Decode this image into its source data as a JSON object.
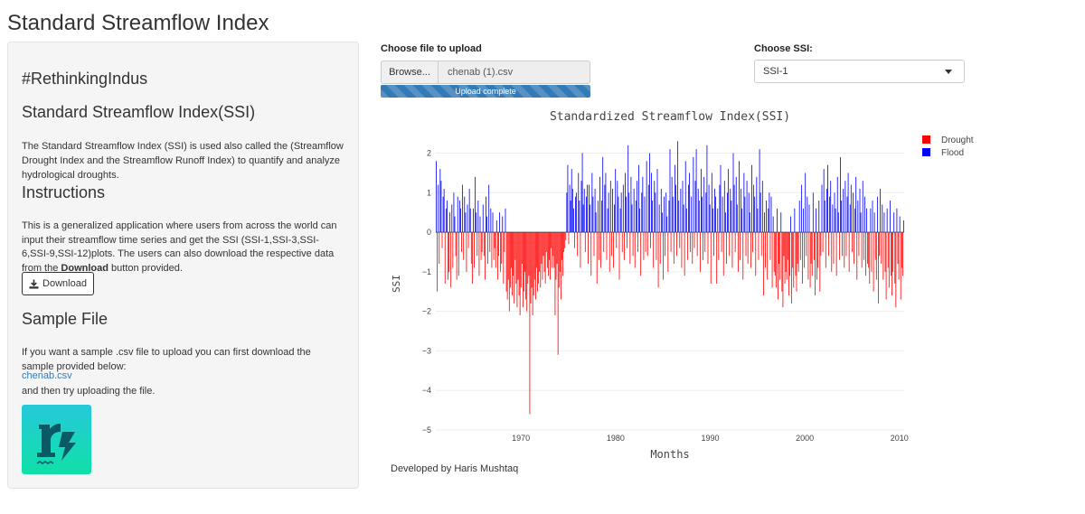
{
  "app": {
    "title": "Standard Streamflow Index"
  },
  "sidebar": {
    "brand": "#RethinkingIndus",
    "ssi_heading": "Standard Streamflow Index(SSI)",
    "ssi_description": "The Standard Streamflow Index (SSI) is used also called the (Streamflow Drought Index and the Streamflow Runoff Index) to quantify and analyze hydrological droughts.",
    "instructions_heading": "Instructions",
    "instructions_text_before": "This is a generalized application where users from across the world can input their streamflow time series and get the SSI (SSI-1,SSI-3,SSI-6,SSI-9,SSI-12)plots. The users can also download the respective data from the ",
    "instructions_bold": "Download",
    "instructions_text_after": " button provided.",
    "download_label": "Download",
    "sample_heading": "Sample File",
    "sample_text": "If you want a sample .csv file to upload you can first download the sample provided below:",
    "sample_link": "chenab.csv",
    "sample_after": "and then try uploading the file."
  },
  "upload": {
    "label": "Choose file to upload",
    "browse_label": "Browse...",
    "file_name": "chenab (1).csv",
    "progress_text": "Upload complete",
    "progress_fraction": 1.0
  },
  "ssi_select": {
    "label": "Choose SSI:",
    "value": "SSI-1"
  },
  "chart_data": {
    "type": "bar",
    "title": "Standardized Streamflow Index(SSI)",
    "xlabel": "Months",
    "ylabel": "SSI",
    "x_range": [
      1961,
      2010.5
    ],
    "ylim": [
      -5,
      2.4
    ],
    "x_ticks": [
      1970,
      1980,
      1990,
      2000,
      2010
    ],
    "y_ticks": [
      -5,
      -4,
      -3,
      -2,
      -1,
      0,
      1,
      2
    ],
    "grid": true,
    "legend_position": "top-right",
    "series": [
      {
        "name": "Drought",
        "color": "#ff0000"
      },
      {
        "name": "Flood",
        "color": "#0000ff"
      }
    ],
    "monthly_values_approx": [
      1.8,
      -1.5,
      1.2,
      -0.8,
      1.6,
      1.3,
      -0.4,
      0.9,
      1.1,
      -1.3,
      0.6,
      0.8,
      -1.2,
      -1.0,
      0.5,
      -1.4,
      0.7,
      -0.9,
      1.0,
      0.4,
      -0.6,
      -1.2,
      0.9,
      -1.1,
      0.8,
      0.6,
      -0.5,
      1.2,
      -0.7,
      0.9,
      0.5,
      -1.0,
      0.7,
      -0.4,
      1.1,
      0.6,
      -0.8,
      -1.3,
      0.6,
      -0.9,
      1.4,
      0.5,
      -0.6,
      0.8,
      -1.1,
      0.4,
      -0.7,
      -0.5,
      0.7,
      -0.6,
      -1.2,
      0.9,
      0.4,
      -0.8,
      1.2,
      -0.5,
      0.6,
      -0.9,
      0.5,
      -0.7,
      -0.4,
      -0.9,
      0.3,
      -1.2,
      -0.6,
      0.5,
      -1.0,
      -0.8,
      0.4,
      -1.3,
      -0.5,
      0.6,
      -1.5,
      -1.7,
      -1.2,
      -2.0,
      -1.4,
      -0.9,
      -1.6,
      -1.1,
      -1.8,
      -0.7,
      -1.3,
      -1.9,
      -1.2,
      -1.6,
      -2.1,
      -1.4,
      -0.8,
      -1.9,
      -1.5,
      -1.0,
      -1.7,
      -2.0,
      -1.3,
      -1.1,
      -4.6,
      -1.8,
      -1.4,
      -2.1,
      -1.6,
      -1.2,
      -1.7,
      -0.9,
      -1.5,
      -1.3,
      -1.0,
      -1.4,
      -0.8,
      -1.2,
      -0.6,
      -1.0,
      -1.3,
      -0.5,
      -0.9,
      -1.1,
      -0.7,
      -1.2,
      -0.4,
      -0.9,
      -0.6,
      -0.9,
      -2.1,
      -1.2,
      -0.8,
      -3.1,
      -1.4,
      -1.0,
      -1.7,
      -0.7,
      -1.1,
      -0.5,
      -0.4,
      -0.2,
      1.0,
      1.7,
      -0.3,
      1.2,
      0.8,
      1.6,
      1.1,
      0.6,
      -0.4,
      0.9,
      1.0,
      -0.6,
      1.5,
      0.8,
      -0.9,
      1.3,
      2.0,
      0.7,
      1.1,
      -0.5,
      0.9,
      1.2,
      -0.8,
      1.2,
      0.7,
      -1.1,
      1.5,
      0.9,
      -0.6,
      1.1,
      0.5,
      -1.3,
      0.8,
      -0.7,
      1.4,
      -0.9,
      0.8,
      1.9,
      -0.5,
      1.2,
      1.5,
      -0.7,
      0.6,
      1.0,
      -1.0,
      1.3,
      -0.6,
      1.1,
      -0.9,
      0.7,
      1.6,
      -0.4,
      1.3,
      0.9,
      -1.2,
      0.6,
      1.0,
      -0.5,
      1.2,
      -0.7,
      1.5,
      0.9,
      -0.4,
      2.2,
      1.0,
      -0.8,
      1.4,
      0.7,
      -0.6,
      1.1,
      -0.9,
      0.8,
      1.3,
      -0.5,
      1.7,
      0.6,
      -1.1,
      1.0,
      1.4,
      -0.7,
      0.9,
      -0.5,
      1.8,
      -0.6,
      1.2,
      2.0,
      -0.4,
      1.5,
      0.8,
      -0.9,
      1.3,
      1.0,
      -0.7,
      1.6,
      -1.4,
      0.7,
      -0.8,
      1.1,
      0.5,
      -1.2,
      0.9,
      -0.6,
      1.0,
      0.4,
      -1.0,
      0.8,
      2.1,
      -0.5,
      1.4,
      0.9,
      -0.8,
      1.7,
      1.2,
      -0.6,
      2.3,
      0.8,
      -0.4,
      1.1,
      -0.9,
      1.3,
      0.7,
      -1.1,
      1.8,
      0.6,
      -0.7,
      1.2,
      1.5,
      -0.5,
      0.9,
      -0.8,
      1.9,
      -0.4,
      1.3,
      2.1,
      -0.6,
      1.1,
      0.8,
      -1.0,
      1.6,
      0.9,
      -0.7,
      1.4,
      -0.5,
      1.0,
      2.2,
      -0.8,
      1.2,
      0.7,
      -1.3,
      1.5,
      0.6,
      -0.6,
      1.1,
      0.9,
      -1.3,
      0.6,
      -0.7,
      1.2,
      1.7,
      -0.5,
      0.9,
      -1.1,
      1.3,
      0.5,
      -0.8,
      1.0,
      1.6,
      -0.6,
      1.1,
      0.8,
      -0.9,
      2.0,
      1.2,
      -0.5,
      1.4,
      0.7,
      -1.0,
      1.8,
      -0.7,
      1.1,
      0.6,
      -1.2,
      1.5,
      0.9,
      -0.6,
      1.3,
      -0.8,
      1.0,
      0.5,
      -0.9,
      1.7,
      -0.5,
      1.2,
      0.9,
      -1.1,
      1.4,
      0.6,
      -0.7,
      2.1,
      1.0,
      -0.6,
      1.3,
      -1.6,
      0.5,
      -0.9,
      0.8,
      -1.2,
      0.6,
      1.0,
      -0.7,
      0.9,
      -1.4,
      0.4,
      -1.0,
      -1.1,
      -1.4,
      0.6,
      -1.7,
      -0.8,
      -1.2,
      0.5,
      -1.5,
      -1.9,
      -0.6,
      -1.3,
      -1.0,
      -1.2,
      -0.7,
      -1.6,
      -1.1,
      0.4,
      -1.8,
      -0.9,
      -1.4,
      0.6,
      -1.1,
      -1.5,
      -0.8,
      -1.0,
      0.8,
      -0.7,
      1.2,
      -1.3,
      0.6,
      -0.9,
      1.5,
      -0.6,
      0.9,
      -1.2,
      0.7,
      -1.4,
      -0.8,
      -1.1,
      1.0,
      -0.7,
      -1.6,
      0.6,
      -1.2,
      -0.9,
      0.8,
      -1.5,
      -0.6,
      1.2,
      -0.5,
      1.6,
      0.8,
      -0.9,
      1.1,
      1.7,
      -0.6,
      0.9,
      1.3,
      -1.0,
      0.7,
      -0.8,
      1.0,
      0.6,
      -1.1,
      1.4,
      0.5,
      -0.7,
      1.9,
      0.8,
      -0.6,
      1.1,
      -0.9,
      1.3,
      -0.6,
      0.9,
      1.5,
      -1.0,
      0.7,
      1.2,
      -0.5,
      1.0,
      -0.8,
      0.6,
      1.4,
      -1.2,
      0.8,
      -0.6,
      1.1,
      0.5,
      -0.9,
      1.3,
      -0.7,
      0.9,
      -1.1,
      0.6,
      -0.8,
      -0.9,
      -1.3,
      0.6,
      -1.0,
      0.8,
      -1.5,
      0.5,
      -0.7,
      -1.2,
      0.9,
      -1.8,
      -0.6,
      1.1,
      -0.8,
      0.7,
      -1.2,
      0.5,
      -1.0,
      -1.7,
      0.6,
      -0.9,
      -1.4,
      0.8,
      -1.1,
      -1.6,
      -1.0,
      0.5,
      -1.3,
      -1.9,
      0.6,
      -0.8,
      -1.2,
      0.4,
      -1.7,
      -0.9,
      -1.1,
      0.3
    ]
  },
  "footer": {
    "text": "Developed by Haris Mushtaq"
  }
}
